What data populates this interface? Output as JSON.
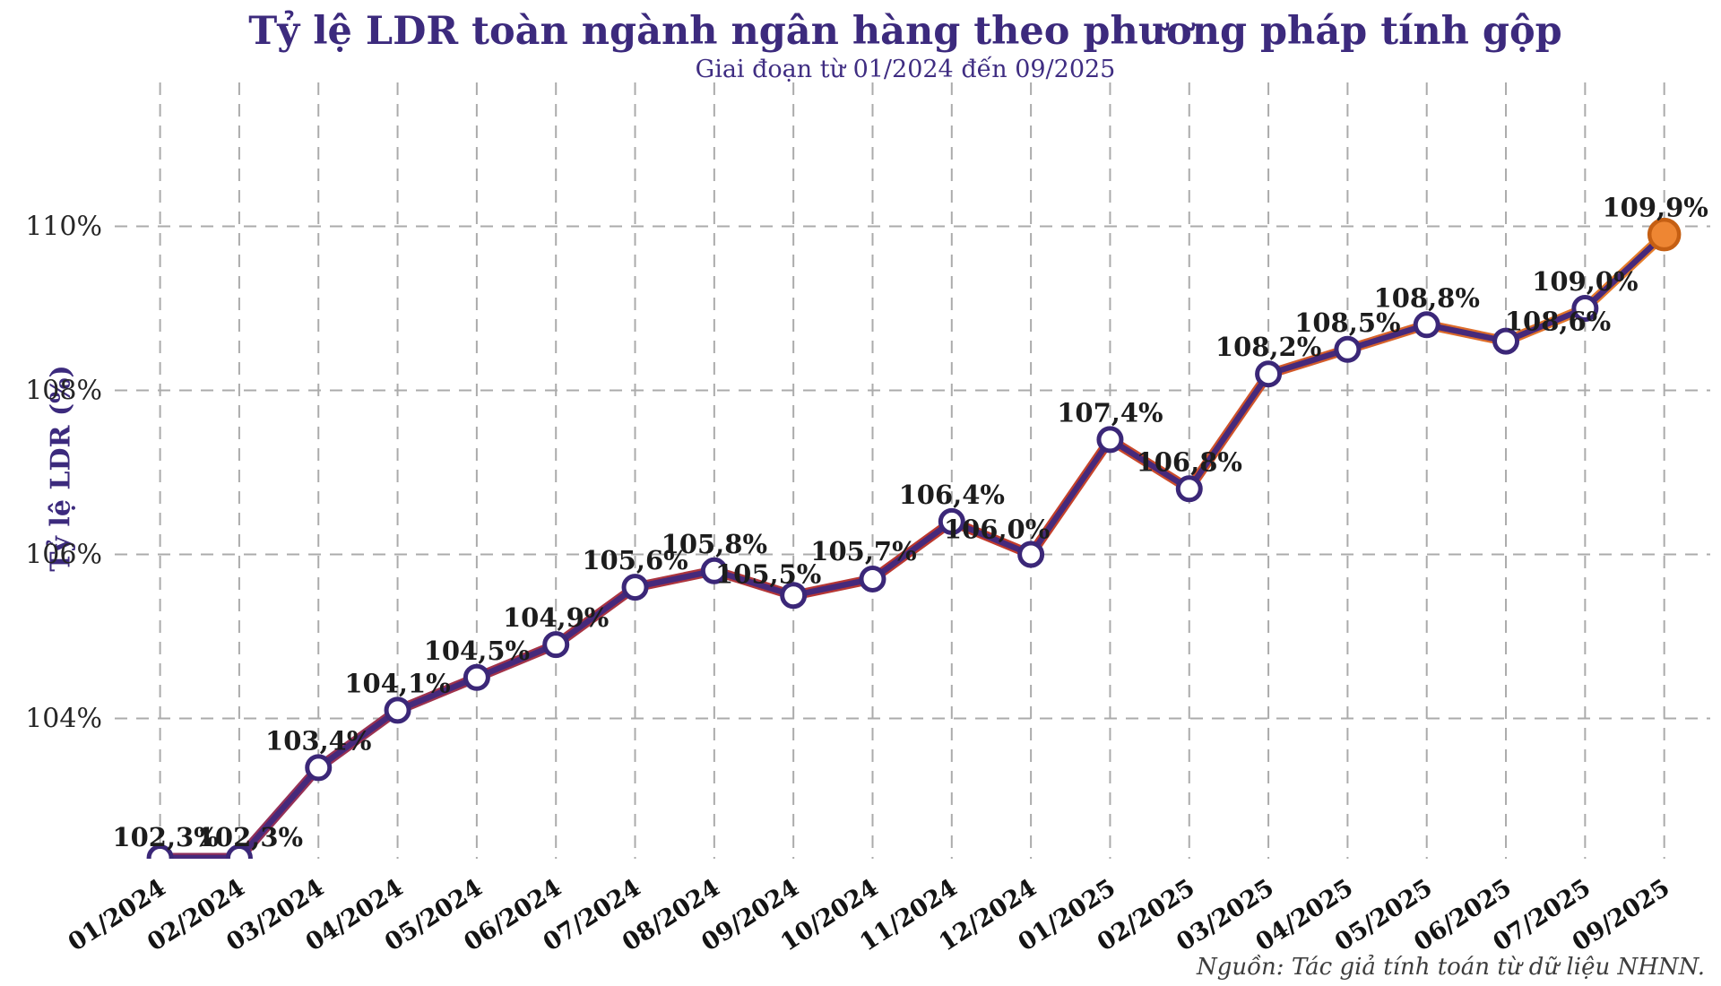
{
  "header": {
    "title": "Tỷ lệ LDR toàn ngành ngân hàng theo phương pháp tính gộp",
    "subtitle": "Giai đoạn từ 01/2024 đến 09/2025"
  },
  "footer": {
    "source": "Nguồn: Tác giả tính toán từ dữ liệu NHNN."
  },
  "chart_data": {
    "type": "line",
    "title": "Tỷ lệ LDR toàn ngành ngân hàng theo phương pháp tính gộp",
    "subtitle": "Giai đoạn từ 01/2024 đến 09/2025",
    "ylabel": "Tỷ lệ LDR (%)",
    "xlabel": "",
    "categories": [
      "01/2024",
      "02/2024",
      "03/2024",
      "04/2024",
      "05/2024",
      "06/2024",
      "07/2024",
      "08/2024",
      "09/2024",
      "10/2024",
      "11/2024",
      "12/2024",
      "01/2025",
      "02/2025",
      "03/2025",
      "04/2025",
      "05/2025",
      "06/2025",
      "07/2025",
      "09/2025"
    ],
    "values": [
      102.3,
      102.3,
      103.4,
      104.1,
      104.5,
      104.9,
      105.6,
      105.8,
      105.5,
      105.7,
      106.4,
      106.0,
      107.4,
      106.8,
      108.2,
      108.5,
      108.8,
      108.6,
      109.0,
      109.9
    ],
    "point_labels": [
      "102,3%",
      "102,3%",
      "103,4%",
      "104,1%",
      "104,5%",
      "104,9%",
      "105,6%",
      "105,8%",
      "105,5%",
      "105,7%",
      "106,4%",
      "106,0%",
      "107,4%",
      "106,8%",
      "108,2%",
      "108,5%",
      "108,8%",
      "108,6%",
      "109,0%",
      "109,9%"
    ],
    "y_ticks": [
      "104%",
      "106%",
      "108%",
      "110%"
    ],
    "y_tick_values": [
      104,
      106,
      108,
      110
    ],
    "ylim": [
      102.3,
      111.7
    ],
    "grid": "dashed",
    "legend": "none",
    "highlight_last_point": true,
    "colors": {
      "line": "#46297B",
      "line_edge_start": "#8E2F5E",
      "line_edge_mid": "#C0392B",
      "line_edge_end": "#E8802A",
      "marker_fill": "#FFFFFF",
      "marker_ring": "#3B2778",
      "last_marker_fill": "#EE8633",
      "last_marker_ring": "#C55F13",
      "grid": "#ABABAB",
      "title": "#3C2A7D"
    }
  }
}
